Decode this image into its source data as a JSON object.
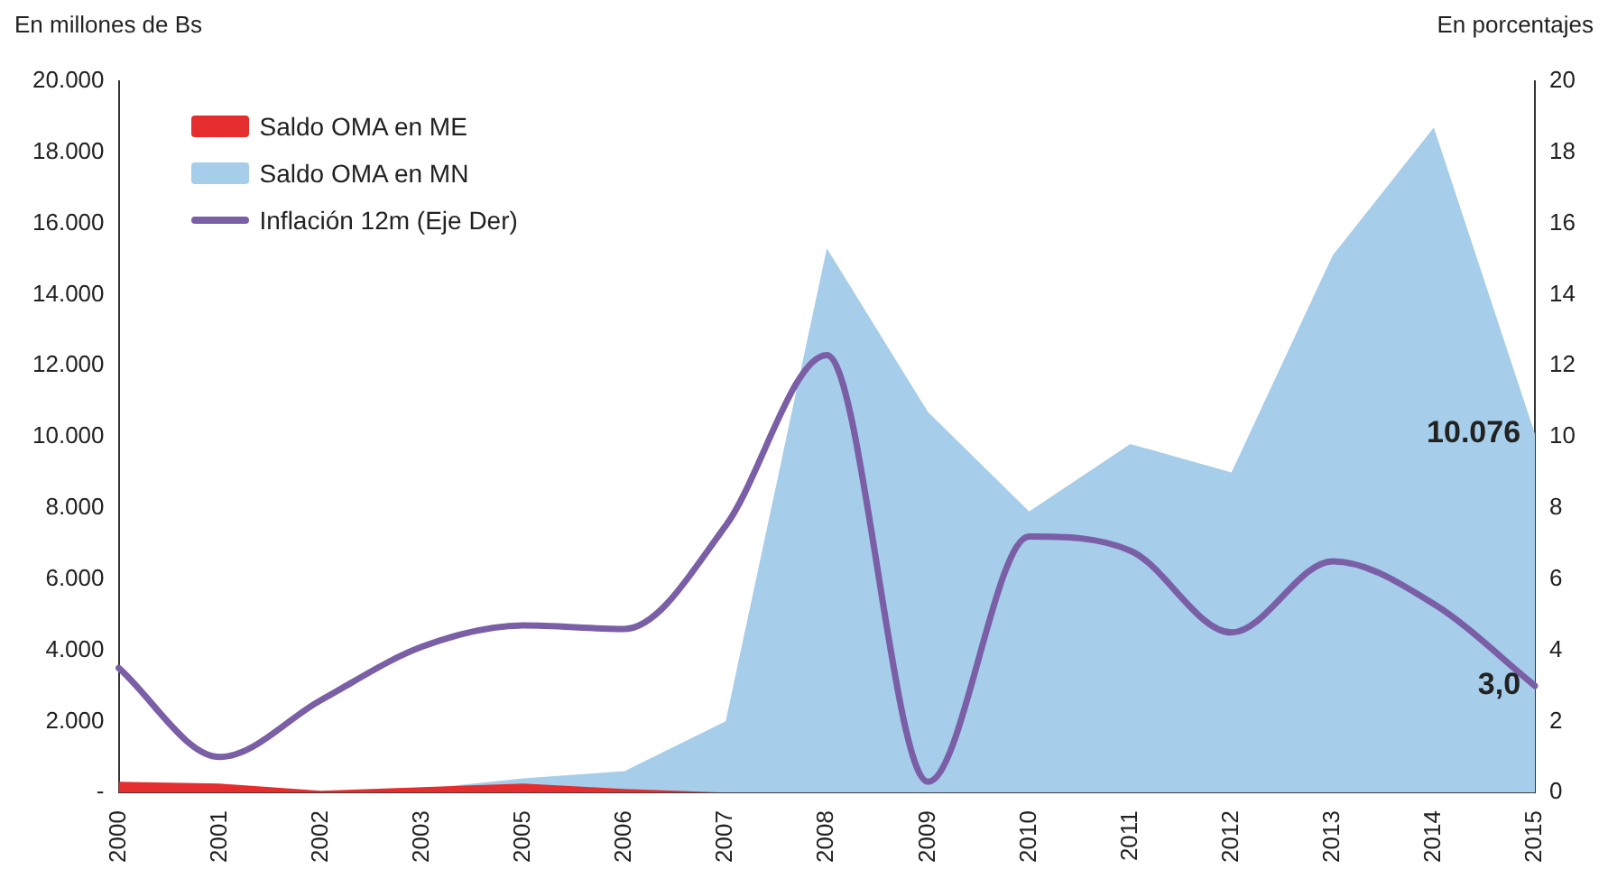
{
  "chart_data": {
    "type": "area",
    "ylabel": "En millones de Bs",
    "y2label": "En porcentajes",
    "categories": [
      "2000",
      "2001",
      "2002",
      "2003",
      "2005",
      "2006",
      "2007",
      "2008",
      "2009",
      "2010",
      "2011",
      "2012",
      "2013",
      "2014",
      "2015"
    ],
    "series": [
      {
        "name": "Saldo OMA en ME",
        "color": "#e52d2d",
        "values": [
          300,
          250,
          50,
          150,
          250,
          100,
          0,
          0,
          0,
          0,
          0,
          0,
          0,
          0,
          0
        ]
      },
      {
        "name": "Saldo OMA en MN",
        "color": "#a6cde9",
        "values": [
          0,
          0,
          0,
          100,
          400,
          600,
          2000,
          15300,
          10700,
          7900,
          9800,
          9000,
          15100,
          18700,
          10076
        ]
      },
      {
        "name": "Inflación 12m (Eje Der)",
        "type": "line",
        "axis": "y2",
        "color": "#7a5ea6",
        "values": [
          3.5,
          1.0,
          2.6,
          4.1,
          4.7,
          4.6,
          7.5,
          12.3,
          0.3,
          7.2,
          6.8,
          4.5,
          6.5,
          5.3,
          3.0
        ]
      }
    ],
    "ylim": [
      0,
      20000
    ],
    "yticks": [
      {
        "value": 0,
        "label": "-"
      },
      {
        "value": 2000,
        "label": "2.000"
      },
      {
        "value": 4000,
        "label": "4.000"
      },
      {
        "value": 6000,
        "label": "6.000"
      },
      {
        "value": 8000,
        "label": "8.000"
      },
      {
        "value": 10000,
        "label": "10.000"
      },
      {
        "value": 12000,
        "label": "12.000"
      },
      {
        "value": 14000,
        "label": "14.000"
      },
      {
        "value": 16000,
        "label": "16.000"
      },
      {
        "value": 18000,
        "label": "18.000"
      },
      {
        "value": 20000,
        "label": "20.000"
      }
    ],
    "y2lim": [
      0,
      20
    ],
    "y2ticks": [
      0,
      2,
      4,
      6,
      8,
      10,
      12,
      14,
      16,
      18,
      20
    ],
    "annotations": [
      {
        "text": "10.076",
        "x": "2015",
        "y": 10076
      },
      {
        "text": "3,0",
        "x": "2015",
        "y": 3000
      }
    ],
    "legend": "top left",
    "grid": false,
    "marker": "none"
  }
}
